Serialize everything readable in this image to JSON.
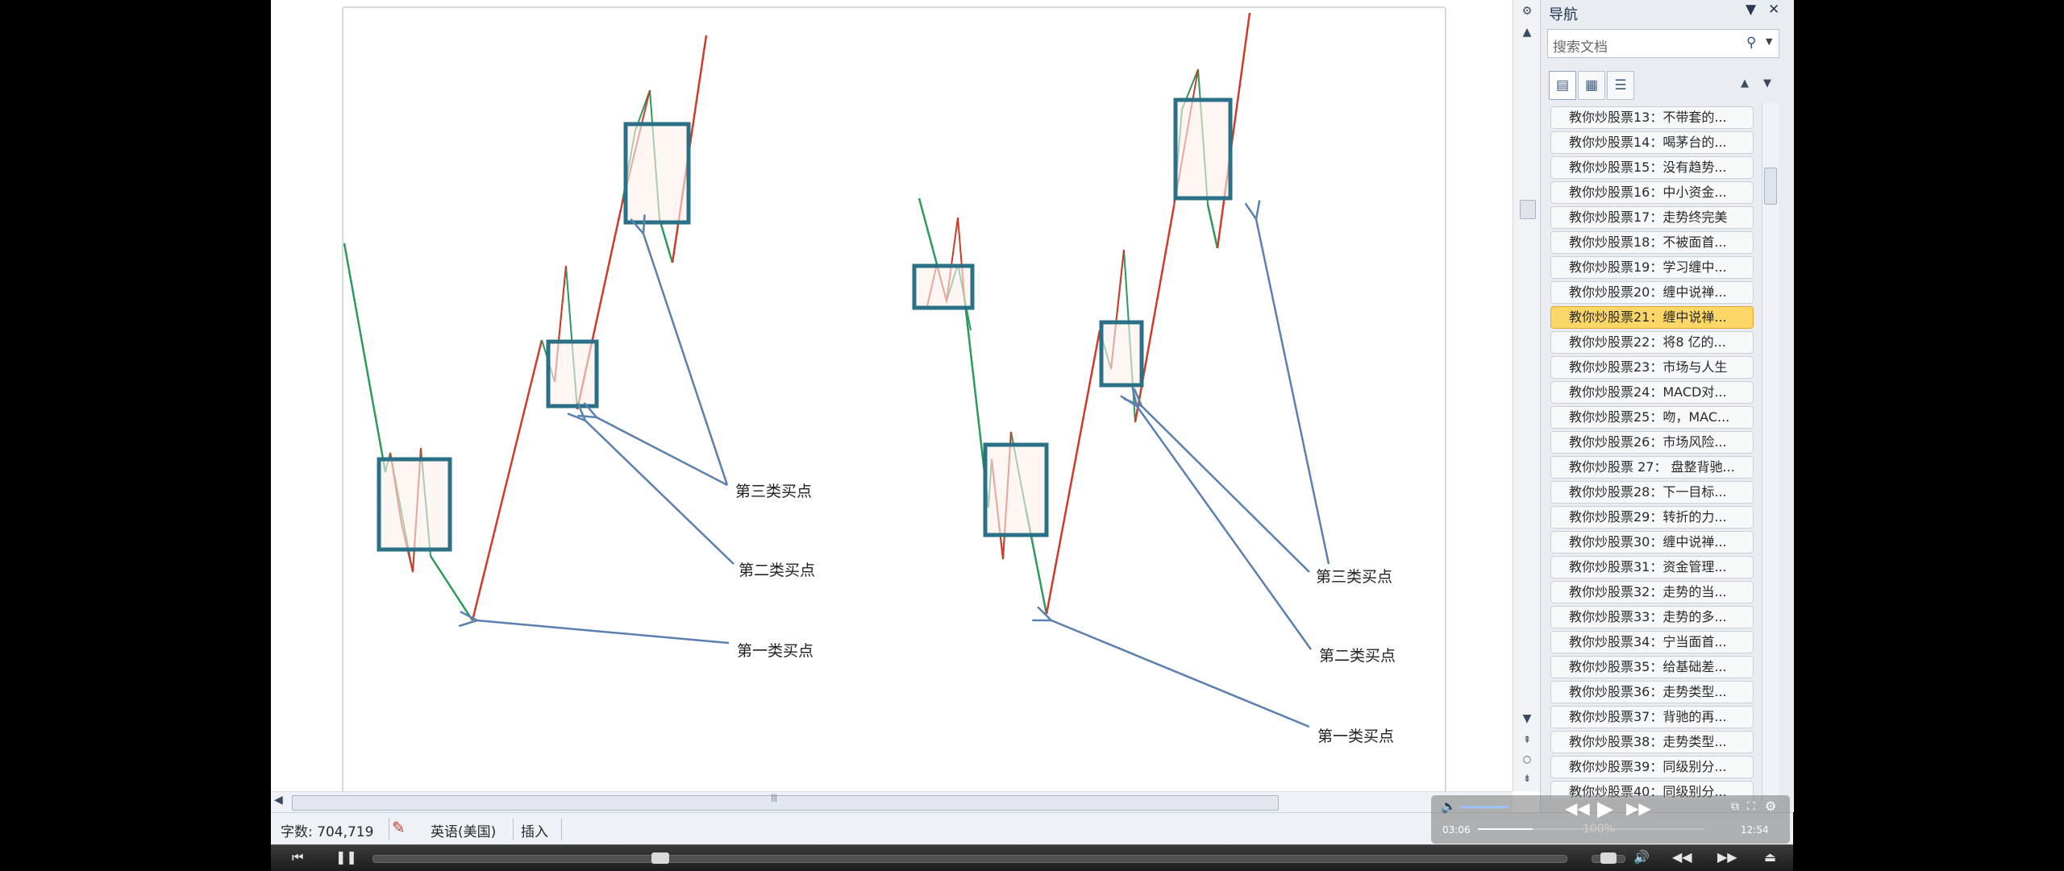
{
  "document": {
    "charts": [
      {
        "labels": {
          "third": "第三类买点",
          "second": "第二类买点",
          "first": "第一类买点"
        }
      },
      {
        "labels": {
          "third": "第三类买点",
          "second": "第二类买点",
          "first": "第一类买点"
        }
      }
    ],
    "colors": {
      "up_segment": "#d03a2c",
      "down_segment": "#2b9a5a",
      "pivot_box": "#2a7086",
      "arrow": "#5b80b0"
    }
  },
  "statusbar": {
    "word_count": "字数: 704,719",
    "language": "英语(美国)",
    "mode": "插入"
  },
  "nav": {
    "title": "导航",
    "search_placeholder": "搜索文档",
    "items": [
      {
        "label": "教你炒股票13：不带套的...",
        "selected": false
      },
      {
        "label": "教你炒股票14：喝茅台的...",
        "selected": false
      },
      {
        "label": "教你炒股票15：没有趋势...",
        "selected": false
      },
      {
        "label": "教你炒股票16：中小资金...",
        "selected": false
      },
      {
        "label": "教你炒股票17：走势终完美",
        "selected": false
      },
      {
        "label": "教你炒股票18：不被面首...",
        "selected": false
      },
      {
        "label": "教你炒股票19：学习缠中...",
        "selected": false
      },
      {
        "label": "教你炒股票20：缠中说禅...",
        "selected": false
      },
      {
        "label": "教你炒股票21：缠中说禅...",
        "selected": true
      },
      {
        "label": "教你炒股票22：将8 亿的...",
        "selected": false
      },
      {
        "label": "教你炒股票23：市场与人生",
        "selected": false
      },
      {
        "label": "教你炒股票24：MACD对...",
        "selected": false
      },
      {
        "label": "教你炒股票25：吻，MAC...",
        "selected": false
      },
      {
        "label": "教你炒股票26：市场风险...",
        "selected": false
      },
      {
        "label": "教你炒股票 27： 盘整背驰...",
        "selected": false
      },
      {
        "label": "教你炒股票28：下一目标...",
        "selected": false
      },
      {
        "label": "教你炒股票29：转折的力...",
        "selected": false
      },
      {
        "label": "教你炒股票30：缠中说禅...",
        "selected": false
      },
      {
        "label": "教你炒股票31：资金管理...",
        "selected": false
      },
      {
        "label": "教你炒股票32：走势的当...",
        "selected": false
      },
      {
        "label": "教你炒股票33：走势的多...",
        "selected": false
      },
      {
        "label": "教你炒股票34：宁当面首...",
        "selected": false
      },
      {
        "label": "教你炒股票35：给基础差...",
        "selected": false
      },
      {
        "label": "教你炒股票36：走势类型...",
        "selected": false
      },
      {
        "label": "教你炒股票37：背驰的再...",
        "selected": false
      },
      {
        "label": "教你炒股票38：走势类型...",
        "selected": false
      },
      {
        "label": "教你炒股票39：同级别分...",
        "selected": false
      },
      {
        "label": "教你炒股票40：同级别分...",
        "selected": false
      }
    ]
  },
  "player_overlay": {
    "elapsed": "03:06",
    "total": "12:54",
    "zoom": "100%",
    "progress_fraction": 0.24
  }
}
